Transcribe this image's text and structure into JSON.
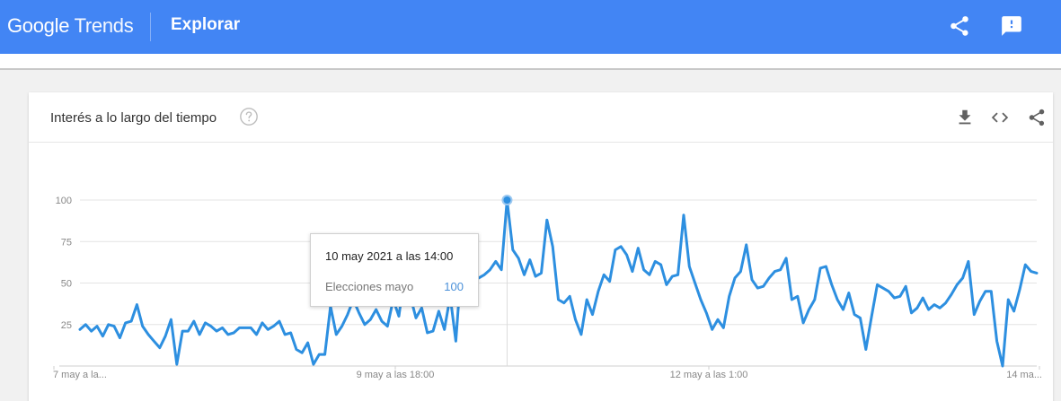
{
  "app": {
    "logo_google": "Google",
    "logo_trends": "Trends",
    "section": "Explorar",
    "icons": {
      "share": "share-icon",
      "feedback": "feedback-icon"
    },
    "brand_color": "#4285f4"
  },
  "card": {
    "title": "Interés a lo largo del tiempo",
    "icons": [
      "help-icon",
      "download-icon",
      "embed-icon",
      "share-icon"
    ]
  },
  "tooltip": {
    "date": "10 may 2021 a las 14:00",
    "term": "Elecciones mayo",
    "value": "100"
  },
  "chart_data": {
    "type": "line",
    "title": "",
    "xlabel": "",
    "ylabel": "",
    "ylim": [
      0,
      100
    ],
    "yticks": [
      25,
      50,
      75,
      100
    ],
    "grid": true,
    "xtick_labels": [
      "7 may a la...",
      "9 may a las 18:00",
      "12 may a las 1:00",
      "14 ma..."
    ],
    "series": [
      {
        "name": "Elecciones mayo",
        "color": "#2d8fe0",
        "values": [
          22,
          25,
          21,
          24,
          18,
          25,
          24,
          17,
          26,
          27,
          37,
          24,
          19,
          15,
          11,
          18,
          28,
          1,
          21,
          21,
          27,
          19,
          26,
          24,
          21,
          23,
          19,
          20,
          23,
          23,
          23,
          19,
          26,
          22,
          24,
          27,
          19,
          20,
          10,
          8,
          14,
          1,
          7,
          7,
          36,
          19,
          24,
          31,
          40,
          32,
          25,
          28,
          34,
          27,
          24,
          40,
          30,
          55,
          42,
          29,
          35,
          20,
          21,
          33,
          22,
          42,
          15,
          62,
          68,
          55,
          53,
          55,
          58,
          63,
          58,
          100,
          70,
          65,
          55,
          64,
          54,
          56,
          88,
          72,
          40,
          38,
          42,
          28,
          19,
          40,
          31,
          45,
          55,
          51,
          70,
          72,
          67,
          57,
          71,
          58,
          55,
          63,
          61,
          49,
          54,
          55,
          91,
          60,
          50,
          40,
          32,
          22,
          28,
          23,
          42,
          53,
          57,
          73,
          52,
          47,
          48,
          53,
          57,
          58,
          65,
          40,
          42,
          26,
          34,
          40,
          59,
          60,
          49,
          40,
          34,
          44,
          31,
          29,
          10,
          30,
          49,
          47,
          45,
          41,
          42,
          48,
          32,
          35,
          41,
          34,
          37,
          35,
          38,
          43,
          49,
          53,
          63,
          31,
          39,
          45,
          45,
          15,
          0,
          40,
          33,
          46,
          61,
          57,
          56
        ]
      }
    ],
    "highlight": {
      "index": 75,
      "value": 100
    }
  }
}
